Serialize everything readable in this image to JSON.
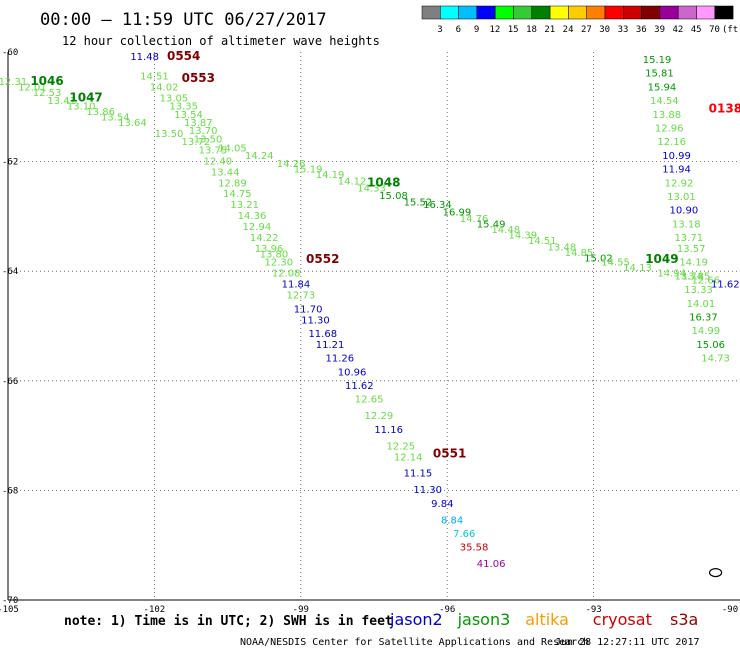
{
  "header": {
    "title": "00:00 – 11:59 UTC 06/27/2017",
    "subtitle": "12 hour collection of altimeter wave heights"
  },
  "colorbar": {
    "colors": [
      "#7f7f7f",
      "#00ffff",
      "#00bfff",
      "#0000ff",
      "#00ff00",
      "#33cc33",
      "#008000",
      "#ffff00",
      "#ffcc00",
      "#ff8000",
      "#ff0000",
      "#cc0000",
      "#800000",
      "#990099",
      "#cc66cc",
      "#ff99ff",
      "#000000"
    ],
    "labels": [
      "3",
      "6",
      "9",
      "12",
      "15",
      "18",
      "21",
      "24",
      "27",
      "30",
      "33",
      "36",
      "39",
      "42",
      "45",
      "70",
      "(ft)"
    ]
  },
  "axes": {
    "lon_labels": [
      "-105",
      "-102",
      "-99",
      "-96",
      "-93",
      "-90"
    ],
    "lat_labels": [
      "-60",
      "-62",
      "-64",
      "-66",
      "-68",
      "-70"
    ]
  },
  "tracks": [
    {
      "pass": "0554",
      "pass_color": "#800000",
      "points": [
        {
          "lon": -102.2,
          "lat": -60.15,
          "v": "11.48",
          "c": "#0000cc"
        },
        {
          "lon": -102.0,
          "lat": -60.5,
          "v": "14.51",
          "c": "#66dd44"
        },
        {
          "lon": -101.8,
          "lat": -60.7,
          "v": "14.02",
          "c": "#66dd44"
        },
        {
          "lon": -101.6,
          "lat": -60.9,
          "v": "13.05",
          "c": "#66dd44"
        },
        {
          "lon": -101.4,
          "lat": -61.05,
          "v": "13.35",
          "c": "#66dd44"
        },
        {
          "lon": -101.3,
          "lat": -61.2,
          "v": "13.54",
          "c": "#66dd44"
        },
        {
          "lon": -101.1,
          "lat": -61.35,
          "v": "13.87",
          "c": "#66dd44"
        },
        {
          "lon": -101.0,
          "lat": -61.5,
          "v": "13.70",
          "c": "#66dd44"
        },
        {
          "lon": -100.9,
          "lat": -61.65,
          "v": "13.50",
          "c": "#66dd44"
        },
        {
          "lon": -100.8,
          "lat": -61.85,
          "v": "13.75",
          "c": "#66dd44"
        },
        {
          "lon": -100.7,
          "lat": -62.05,
          "v": "12.40",
          "c": "#66dd44"
        },
        {
          "lon": -100.55,
          "lat": -62.25,
          "v": "13.44",
          "c": "#66dd44"
        },
        {
          "lon": -100.4,
          "lat": -62.45,
          "v": "12.89",
          "c": "#66dd44"
        },
        {
          "lon": -100.3,
          "lat": -62.65,
          "v": "14.75",
          "c": "#66dd44"
        },
        {
          "lon": -100.15,
          "lat": -62.85,
          "v": "13.21",
          "c": "#66dd44"
        },
        {
          "lon": -100.0,
          "lat": -63.05,
          "v": "14.36",
          "c": "#66dd44"
        },
        {
          "lon": -99.9,
          "lat": -63.25,
          "v": "12.94",
          "c": "#66dd44"
        },
        {
          "lon": -99.75,
          "lat": -63.45,
          "v": "14.22",
          "c": "#66dd44"
        },
        {
          "lon": -99.65,
          "lat": -63.65,
          "v": "13.96",
          "c": "#66dd44"
        },
        {
          "lon": -99.55,
          "lat": -63.75,
          "v": "13.80",
          "c": "#66dd44"
        },
        {
          "lon": -99.45,
          "lat": -63.9,
          "v": "12.30",
          "c": "#66dd44"
        },
        {
          "lon": -99.3,
          "lat": -64.1,
          "v": "12.08",
          "c": "#66dd44"
        },
        {
          "lon": -99.1,
          "lat": -64.3,
          "v": "11.84",
          "c": "#0000cc"
        },
        {
          "lon": -99.0,
          "lat": -64.5,
          "v": "12.73",
          "c": "#66dd44"
        },
        {
          "lon": -98.85,
          "lat": -64.75,
          "v": "11.70",
          "c": "#0000cc"
        },
        {
          "lon": -98.7,
          "lat": -64.95,
          "v": "11.30",
          "c": "#0000cc"
        },
        {
          "lon": -98.55,
          "lat": -65.2,
          "v": "11.68",
          "c": "#0000cc"
        },
        {
          "lon": -98.4,
          "lat": -65.4,
          "v": "11.21",
          "c": "#0000cc"
        },
        {
          "lon": -98.2,
          "lat": -65.65,
          "v": "11.26",
          "c": "#0000cc"
        },
        {
          "lon": -97.95,
          "lat": -65.9,
          "v": "10.96",
          "c": "#0000cc"
        },
        {
          "lon": -97.8,
          "lat": -66.15,
          "v": "11.62",
          "c": "#0000cc"
        },
        {
          "lon": -97.6,
          "lat": -66.4,
          "v": "12.65",
          "c": "#66dd44"
        },
        {
          "lon": -97.4,
          "lat": -66.7,
          "v": "12.29",
          "c": "#66dd44"
        },
        {
          "lon": -97.2,
          "lat": -66.95,
          "v": "11.16",
          "c": "#0000cc"
        },
        {
          "lon": -96.95,
          "lat": -67.25,
          "v": "12.25",
          "c": "#66dd44"
        },
        {
          "lon": -96.8,
          "lat": -67.45,
          "v": "12.14",
          "c": "#66dd44"
        },
        {
          "lon": -96.6,
          "lat": -67.75,
          "v": "11.15",
          "c": "#0000cc"
        },
        {
          "lon": -96.4,
          "lat": -68.05,
          "v": "11.30",
          "c": "#0000cc"
        },
        {
          "lon": -96.1,
          "lat": -68.3,
          "v": "9.84",
          "c": "#0000cc"
        },
        {
          "lon": -95.9,
          "lat": -68.6,
          "v": "8.84",
          "c": "#00aaff"
        },
        {
          "lon": -95.65,
          "lat": -68.85,
          "v": "7.66",
          "c": "#00cccc"
        },
        {
          "lon": -95.45,
          "lat": -69.1,
          "v": "35.58",
          "c": "#cc0000"
        },
        {
          "lon": -95.1,
          "lat": -69.4,
          "v": "41.06",
          "c": "#990099"
        }
      ]
    },
    {
      "pass": "0553",
      "pass_color": "#800000",
      "points": [
        {
          "lon": -104.9,
          "lat": -60.6,
          "v": "12.31",
          "c": "#66dd44"
        },
        {
          "lon": -104.5,
          "lat": -60.7,
          "v": "12.01",
          "c": "#66dd44"
        },
        {
          "lon": -104.2,
          "lat": -60.8,
          "v": "12.53",
          "c": "#66dd44"
        },
        {
          "lon": -103.9,
          "lat": -60.95,
          "v": "13.41",
          "c": "#66dd44"
        },
        {
          "lon": -103.5,
          "lat": -61.05,
          "v": "13.10",
          "c": "#66dd44"
        },
        {
          "lon": -103.1,
          "lat": -61.15,
          "v": "13.86",
          "c": "#66dd44"
        },
        {
          "lon": -102.8,
          "lat": -61.25,
          "v": "13.54",
          "c": "#66dd44"
        },
        {
          "lon": -102.45,
          "lat": -61.35,
          "v": "13.64",
          "c": "#66dd44"
        },
        {
          "lon": -101.7,
          "lat": -61.55,
          "v": "13.50",
          "c": "#66dd44"
        },
        {
          "lon": -101.15,
          "lat": -61.7,
          "v": "13.72",
          "c": "#66dd44"
        },
        {
          "lon": -100.4,
          "lat": -61.82,
          "v": "14.05",
          "c": "#66dd44"
        },
        {
          "lon": -99.85,
          "lat": -61.95,
          "v": "14.24",
          "c": "#66dd44"
        },
        {
          "lon": -99.2,
          "lat": -62.1,
          "v": "14.26",
          "c": "#66dd44"
        },
        {
          "lon": -98.85,
          "lat": -62.2,
          "v": "15.19",
          "c": "#66dd44"
        },
        {
          "lon": -98.4,
          "lat": -62.3,
          "v": "14.19",
          "c": "#66dd44"
        },
        {
          "lon": -97.95,
          "lat": -62.42,
          "v": "14.12",
          "c": "#66dd44"
        },
        {
          "lon": -97.55,
          "lat": -62.55,
          "v": "14.33",
          "c": "#66dd44"
        },
        {
          "lon": -97.1,
          "lat": -62.68,
          "v": "15.08",
          "c": "#009900"
        },
        {
          "lon": -96.6,
          "lat": -62.8,
          "v": "15.52",
          "c": "#009900"
        },
        {
          "lon": -96.2,
          "lat": -62.85,
          "v": "16.34",
          "c": "#009900"
        },
        {
          "lon": -95.8,
          "lat": -62.98,
          "v": "16.99",
          "c": "#009900"
        },
        {
          "lon": -95.45,
          "lat": -63.1,
          "v": "14.76",
          "c": "#66dd44"
        },
        {
          "lon": -95.1,
          "lat": -63.2,
          "v": "15.49",
          "c": "#009900"
        },
        {
          "lon": -94.8,
          "lat": -63.3,
          "v": "14.48",
          "c": "#66dd44"
        },
        {
          "lon": -94.45,
          "lat": -63.4,
          "v": "14.39",
          "c": "#66dd44"
        },
        {
          "lon": -94.05,
          "lat": -63.5,
          "v": "14.51",
          "c": "#66dd44"
        },
        {
          "lon": -93.65,
          "lat": -63.62,
          "v": "13.48",
          "c": "#66dd44"
        },
        {
          "lon": -93.3,
          "lat": -63.72,
          "v": "14.85",
          "c": "#66dd44"
        },
        {
          "lon": -92.9,
          "lat": -63.82,
          "v": "15.02",
          "c": "#009900"
        },
        {
          "lon": -92.55,
          "lat": -63.9,
          "v": "14.55",
          "c": "#66dd44"
        },
        {
          "lon": -92.1,
          "lat": -64.0,
          "v": "14.13",
          "c": "#66dd44"
        },
        {
          "lon": -91.4,
          "lat": -64.1,
          "v": "14.94",
          "c": "#66dd44"
        },
        {
          "lon": -91.05,
          "lat": -64.15,
          "v": "13.74",
          "c": "#66dd44"
        },
        {
          "lon": -90.7,
          "lat": -64.22,
          "v": "12.66",
          "c": "#66dd44"
        },
        {
          "lon": -90.3,
          "lat": -64.3,
          "v": "11.62",
          "c": "#0000cc"
        }
      ]
    },
    {
      "pass": "0138",
      "pass_color": "#ff0000",
      "points": [
        {
          "lon": -91.7,
          "lat": -60.2,
          "v": "15.19",
          "c": "#009900"
        },
        {
          "lon": -91.65,
          "lat": -60.45,
          "v": "15.81",
          "c": "#009900"
        },
        {
          "lon": -91.6,
          "lat": -60.7,
          "v": "15.94",
          "c": "#009900"
        },
        {
          "lon": -91.55,
          "lat": -60.95,
          "v": "14.54",
          "c": "#66dd44"
        },
        {
          "lon": -91.5,
          "lat": -61.2,
          "v": "13.88",
          "c": "#66dd44"
        },
        {
          "lon": -91.45,
          "lat": -61.45,
          "v": "12.96",
          "c": "#66dd44"
        },
        {
          "lon": -91.4,
          "lat": -61.7,
          "v": "12.16",
          "c": "#66dd44"
        },
        {
          "lon": -91.3,
          "lat": -61.95,
          "v": "10.99",
          "c": "#0000cc"
        },
        {
          "lon": -91.3,
          "lat": -62.2,
          "v": "11.94",
          "c": "#0000cc"
        },
        {
          "lon": -91.25,
          "lat": -62.45,
          "v": "12.92",
          "c": "#66dd44"
        },
        {
          "lon": -91.2,
          "lat": -62.7,
          "v": "13.01",
          "c": "#66dd44"
        },
        {
          "lon": -91.15,
          "lat": -62.95,
          "v": "10.90",
          "c": "#0000cc"
        },
        {
          "lon": -91.1,
          "lat": -63.2,
          "v": "13.18",
          "c": "#66dd44"
        },
        {
          "lon": -91.05,
          "lat": -63.45,
          "v": "13.71",
          "c": "#66dd44"
        },
        {
          "lon": -91.0,
          "lat": -63.65,
          "v": "13.57",
          "c": "#66dd44"
        },
        {
          "lon": -90.95,
          "lat": -63.9,
          "v": "14.19",
          "c": "#66dd44"
        },
        {
          "lon": -90.9,
          "lat": -64.15,
          "v": "13.85",
          "c": "#66dd44"
        },
        {
          "lon": -90.85,
          "lat": -64.4,
          "v": "13.33",
          "c": "#66dd44"
        },
        {
          "lon": -90.8,
          "lat": -64.65,
          "v": "14.01",
          "c": "#66dd44"
        },
        {
          "lon": -90.75,
          "lat": -64.9,
          "v": "16.37",
          "c": "#009900"
        },
        {
          "lon": -90.7,
          "lat": -65.15,
          "v": "14.99",
          "c": "#66dd44"
        },
        {
          "lon": -90.6,
          "lat": -65.4,
          "v": "15.06",
          "c": "#009900"
        },
        {
          "lon": -90.5,
          "lat": -65.65,
          "v": "14.73",
          "c": "#66dd44"
        }
      ]
    }
  ],
  "pass_labels": [
    {
      "text": "0554",
      "lon": -101.4,
      "lat": -60.15,
      "c": "#800000"
    },
    {
      "text": "0553",
      "lon": -101.1,
      "lat": -60.55,
      "c": "#800000"
    },
    {
      "text": "1046",
      "lon": -104.2,
      "lat": -60.6,
      "c": "#008000"
    },
    {
      "text": "1047",
      "lon": -103.4,
      "lat": -60.9,
      "c": "#008000"
    },
    {
      "text": "1048",
      "lon": -97.3,
      "lat": -62.45,
      "c": "#008000"
    },
    {
      "text": "1049",
      "lon": -91.6,
      "lat": -63.85,
      "c": "#008000"
    },
    {
      "text": "0552",
      "lon": -98.55,
      "lat": -63.85,
      "c": "#800000"
    },
    {
      "text": "0551",
      "lon": -95.95,
      "lat": -67.4,
      "c": "#800000"
    },
    {
      "text": "0138",
      "lon": -90.3,
      "lat": -61.1,
      "c": "#ff0000"
    }
  ],
  "island": {
    "lon": -90.5,
    "lat": -69.5
  },
  "footer": {
    "note": "note:  1) Time is in UTC;  2) SWH is in feet",
    "legend": [
      {
        "name": "jason2",
        "color": "#0000cc"
      },
      {
        "name": "jason3",
        "color": "#009900"
      },
      {
        "name": "altika",
        "color": "#ff9900"
      },
      {
        "name": "cryosat",
        "color": "#cc0000"
      },
      {
        "name": "s3a",
        "color": "#990000"
      }
    ],
    "credit": "NOAA/NESDIS Center for Satellite Applications and Research",
    "timestamp": "Jun 28 12:27:11 UTC 2017"
  }
}
